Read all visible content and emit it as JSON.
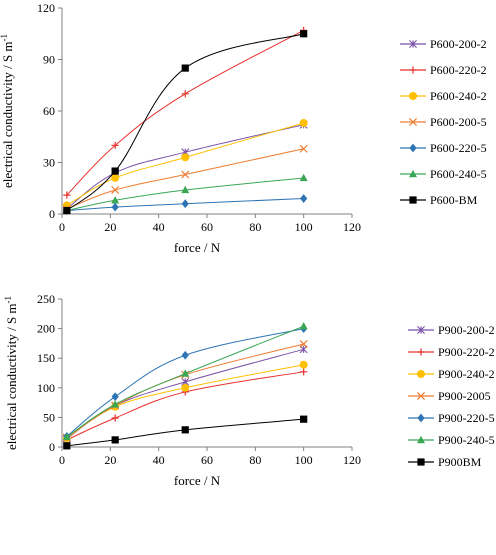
{
  "chart_data": [
    {
      "type": "line",
      "xlabel": "force / N",
      "ylabel": "electrical conductivity / S m",
      "ylabel_sup": "-1",
      "xlim": [
        0,
        120
      ],
      "ylim": [
        0,
        120
      ],
      "xticks": [
        0,
        20,
        40,
        60,
        80,
        100,
        120
      ],
      "yticks": [
        0,
        30,
        60,
        90,
        120
      ],
      "grid": false,
      "legend_position": "right",
      "series": [
        {
          "name": "P600-200-2",
          "marker": "star",
          "color": "#7b52a8",
          "points": [
            [
              2,
              3
            ],
            [
              22,
              24
            ],
            [
              51,
              36
            ],
            [
              100,
              52
            ]
          ]
        },
        {
          "name": "P600-220-2",
          "marker": "plus",
          "color": "#e8302d",
          "points": [
            [
              2,
              11
            ],
            [
              22,
              40
            ],
            [
              51,
              70
            ],
            [
              100,
              107
            ]
          ]
        },
        {
          "name": "P600-240-2",
          "marker": "circle",
          "color": "#ffc000",
          "points": [
            [
              2,
              5
            ],
            [
              22,
              21
            ],
            [
              51,
              33
            ],
            [
              100,
              53
            ]
          ]
        },
        {
          "name": "P600-200-5",
          "marker": "x",
          "color": "#ed7d31",
          "points": [
            [
              2,
              3
            ],
            [
              22,
              14
            ],
            [
              51,
              23
            ],
            [
              100,
              38
            ]
          ]
        },
        {
          "name": "P600-220-5",
          "marker": "diamond",
          "color": "#2e75b6",
          "points": [
            [
              2,
              2
            ],
            [
              22,
              4
            ],
            [
              51,
              6
            ],
            [
              100,
              9
            ]
          ]
        },
        {
          "name": "P600-240-5",
          "marker": "triangle",
          "color": "#3aa757",
          "points": [
            [
              2,
              2
            ],
            [
              22,
              8
            ],
            [
              51,
              14
            ],
            [
              100,
              21
            ]
          ]
        },
        {
          "name": "P600-BM",
          "marker": "square",
          "color": "#000000",
          "points": [
            [
              2,
              2
            ],
            [
              22,
              25
            ],
            [
              51,
              85
            ],
            [
              100,
              105
            ]
          ]
        }
      ]
    },
    {
      "type": "line",
      "xlabel": "force / N",
      "ylabel": "electrical conductivity / S m",
      "ylabel_sup": "-1",
      "xlim": [
        0,
        120
      ],
      "ylim": [
        0,
        250
      ],
      "xticks": [
        0,
        20,
        40,
        60,
        80,
        100,
        120
      ],
      "yticks": [
        0,
        50,
        100,
        150,
        200,
        250
      ],
      "grid": false,
      "legend_position": "right",
      "series": [
        {
          "name": "P900-200-2",
          "marker": "star",
          "color": "#7b52a8",
          "points": [
            [
              2,
              14
            ],
            [
              22,
              70
            ],
            [
              51,
              110
            ],
            [
              100,
              165
            ]
          ]
        },
        {
          "name": "P900-220-2",
          "marker": "plus",
          "color": "#e8302d",
          "points": [
            [
              2,
              12
            ],
            [
              22,
              49
            ],
            [
              51,
              93
            ],
            [
              100,
              127
            ]
          ]
        },
        {
          "name": "P900-240-2",
          "marker": "circle",
          "color": "#ffc000",
          "points": [
            [
              2,
              15
            ],
            [
              22,
              68
            ],
            [
              51,
              100
            ],
            [
              100,
              139
            ]
          ]
        },
        {
          "name": "P900-2005",
          "marker": "x",
          "color": "#ed7d31",
          "points": [
            [
              2,
              16
            ],
            [
              22,
              70
            ],
            [
              51,
              122
            ],
            [
              100,
              174
            ]
          ]
        },
        {
          "name": "P900-220-5",
          "marker": "diamond",
          "color": "#2e75b6",
          "points": [
            [
              2,
              18
            ],
            [
              22,
              85
            ],
            [
              51,
              155
            ],
            [
              100,
              200
            ]
          ]
        },
        {
          "name": "P900-240-5",
          "marker": "triangle",
          "color": "#3aa757",
          "points": [
            [
              2,
              17
            ],
            [
              22,
              72
            ],
            [
              51,
              124
            ],
            [
              100,
              204
            ]
          ]
        },
        {
          "name": "P900BM",
          "marker": "square",
          "color": "#000000",
          "points": [
            [
              2,
              2
            ],
            [
              22,
              12
            ],
            [
              51,
              29
            ],
            [
              100,
              47
            ]
          ]
        }
      ]
    }
  ]
}
